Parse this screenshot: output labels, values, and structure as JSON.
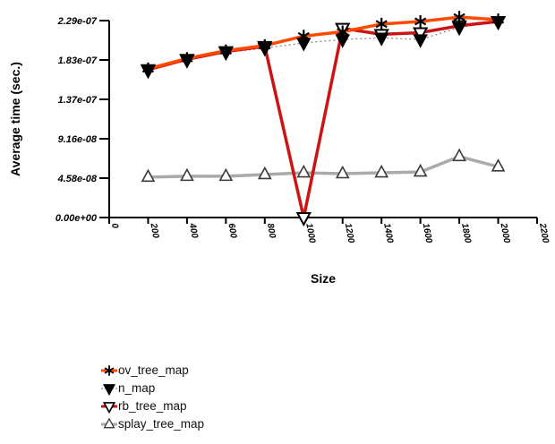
{
  "chart_data": {
    "type": "line",
    "title": "",
    "xlabel": "Size",
    "ylabel": "Average time (sec.)",
    "xlim": [
      0,
      2200
    ],
    "ylim": [
      0,
      2.29e-07
    ],
    "grid": false,
    "legend_position": "below-plot-left",
    "x_ticks": [
      0,
      200,
      400,
      600,
      800,
      1000,
      1200,
      1400,
      1600,
      1800,
      2000,
      2200
    ],
    "y_tick_labels": [
      "0.00e+00",
      "4.58e-08",
      "9.16e-08",
      "1.37e-07",
      "1.83e-07",
      "2.29e-07"
    ],
    "x": [
      200,
      400,
      600,
      800,
      1000,
      1200,
      1400,
      1600,
      1800,
      2000
    ],
    "series": [
      {
        "name": "ov_tree_map",
        "marker": "asterisk",
        "marker_color": "#000000",
        "line_color": "#ff4a00",
        "line_style": "solid",
        "line_width": 3.5,
        "values": [
          1.73e-07,
          1.85e-07,
          1.94e-07,
          2e-07,
          2.11e-07,
          2.16e-07,
          2.25e-07,
          2.28e-07,
          2.33e-07,
          2.3e-07
        ]
      },
      {
        "name": "n_map",
        "marker": "triangle-down-filled",
        "marker_color": "#000000",
        "line_color": "#8a8a8a",
        "line_style": "dotted",
        "line_width": 1.3,
        "values": [
          1.71e-07,
          1.83e-07,
          1.92e-07,
          1.97e-07,
          2.03e-07,
          2.07e-07,
          2.09e-07,
          2.07e-07,
          2.21e-07,
          2.28e-07
        ]
      },
      {
        "name": "rb_tree_map",
        "marker": "triangle-down-open",
        "marker_color": "#000000",
        "line_color": "#cc1414",
        "line_style": "solid",
        "line_width": 3.5,
        "values": [
          1.72e-07,
          1.84e-07,
          1.93e-07,
          1.99e-07,
          0,
          2.2e-07,
          2.13e-07,
          2.15e-07,
          2.23e-07,
          2.28e-07
        ]
      },
      {
        "name": "splay_tree_map",
        "marker": "triangle-up-open",
        "marker_color": "#3a3a3a",
        "line_color": "#aaaaaa",
        "line_style": "solid",
        "line_width": 3.5,
        "values": [
          4.7e-08,
          4.8e-08,
          4.8e-08,
          5e-08,
          5.2e-08,
          5.1e-08,
          5.2e-08,
          5.3e-08,
          7.1e-08,
          5.9e-08
        ]
      }
    ]
  }
}
